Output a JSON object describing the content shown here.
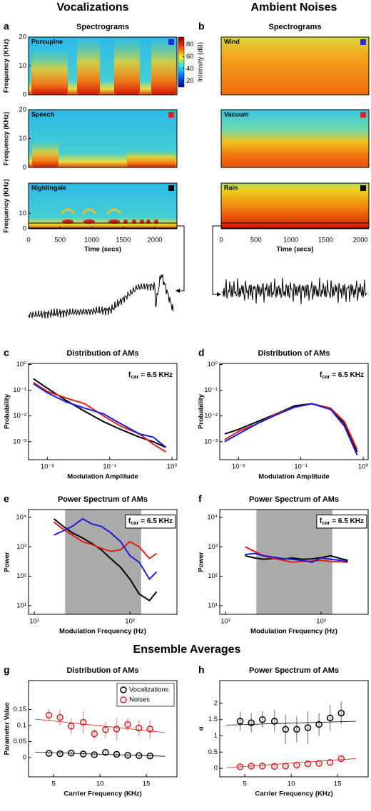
{
  "headings": {
    "left": "Vocalizations",
    "right": "Ambient Noises",
    "ensemble": "Ensemble Averages"
  },
  "chart_data": [
    {
      "type": "spectrogram",
      "panel": "a",
      "title": "Spectrograms",
      "ylabel": "Frequency (KHz)",
      "xlabel": "Time (secs)",
      "xlim": [
        0,
        2350
      ],
      "xticks": [
        0,
        500,
        1000,
        1500,
        2000
      ],
      "colorbar": {
        "label": "Intensity (dB)",
        "lim": [
          10,
          92
        ],
        "ticks": [
          20,
          40,
          60,
          80
        ]
      },
      "panels": [
        {
          "name": "Porcupine",
          "color": "#1f2fe0",
          "ylim": [
            0,
            20
          ],
          "yticks": [
            0,
            10,
            20
          ]
        },
        {
          "name": "Speech",
          "color": "#e8221e",
          "ylim": [
            0,
            20
          ],
          "yticks": [
            0,
            10,
            20
          ]
        },
        {
          "name": "Nightingale",
          "color": "#000000",
          "ylim": [
            0,
            30
          ],
          "yticks": [
            0,
            10
          ]
        }
      ]
    },
    {
      "type": "spectrogram",
      "panel": "b",
      "title": "Spectrograms",
      "xlabel": "Time (secs)",
      "xlim": [
        0,
        2120
      ],
      "xticks": [
        0,
        500,
        1000,
        1500,
        2000
      ],
      "panels": [
        {
          "name": "Wind",
          "color": "#1f2fe0"
        },
        {
          "name": "Vacuum",
          "color": "#e8221e"
        },
        {
          "name": "Rain",
          "color": "#000000"
        }
      ]
    },
    {
      "type": "line",
      "panel": "c",
      "title": "Distribution of AMs",
      "xlabel": "Modulation Amplitude",
      "ylabel": "Probability",
      "xscale": "log",
      "yscale": "log",
      "xlim": [
        0.005,
        1.2
      ],
      "ylim": [
        0.0002,
        1.1
      ],
      "xticks": [
        {
          "value": 0.01,
          "label": "10⁻²"
        },
        {
          "value": 0.1,
          "label": "10⁻¹"
        },
        {
          "value": 1,
          "label": "10⁰"
        }
      ],
      "yticks": [
        {
          "value": 0.001,
          "label": "10⁻³"
        },
        {
          "value": 0.01,
          "label": "10⁻²"
        },
        {
          "value": 0.1,
          "label": "10⁻¹"
        },
        {
          "value": 1,
          "label": "10⁰"
        }
      ],
      "annotation": [
        "f",
        "car",
        " = 6.5 KHz"
      ],
      "annotation_box": false,
      "x": [
        0.006,
        0.01,
        0.02,
        0.04,
        0.08,
        0.15,
        0.3,
        0.5,
        0.8
      ],
      "series": [
        {
          "color": "#000000",
          "values": [
            0.28,
            0.12,
            0.04,
            0.015,
            0.006,
            0.003,
            0.0015,
            0.001,
            0.0006
          ]
        },
        {
          "color": "#e0201b",
          "values": [
            0.2,
            0.09,
            0.05,
            0.03,
            0.01,
            0.004,
            0.002,
            0.0008,
            0.0004
          ]
        },
        {
          "color": "#1c1cdc",
          "values": [
            0.18,
            0.08,
            0.035,
            0.02,
            0.012,
            0.005,
            0.002,
            0.0015,
            0.0006
          ]
        }
      ]
    },
    {
      "type": "line",
      "panel": "d",
      "title": "Distribution of AMs",
      "xlabel": "Modulation Amplitude",
      "ylabel": "Probability",
      "xscale": "log",
      "yscale": "log",
      "xlim": [
        0.005,
        1.2
      ],
      "ylim": [
        0.0002,
        1.1
      ],
      "xticks": [
        {
          "value": 0.01,
          "label": "10⁻²"
        },
        {
          "value": 0.1,
          "label": "10⁻¹"
        },
        {
          "value": 1,
          "label": "10⁰"
        }
      ],
      "yticks": [
        {
          "value": 0.001,
          "label": "10⁻³"
        },
        {
          "value": 0.01,
          "label": "10⁻²"
        },
        {
          "value": 0.1,
          "label": "10⁻¹"
        },
        {
          "value": 1,
          "label": "10⁰"
        }
      ],
      "annotation": [
        "f",
        "car",
        " = 6.5 KHz"
      ],
      "annotation_box": false,
      "x": [
        0.006,
        0.01,
        0.02,
        0.04,
        0.08,
        0.15,
        0.3,
        0.5,
        0.8
      ],
      "series": [
        {
          "color": "#000000",
          "values": [
            0.002,
            0.003,
            0.006,
            0.012,
            0.025,
            0.03,
            0.02,
            0.005,
            0.0004
          ]
        },
        {
          "color": "#e0201b",
          "values": [
            0.0012,
            0.0025,
            0.005,
            0.012,
            0.022,
            0.03,
            0.02,
            0.006,
            0.0005
          ]
        },
        {
          "color": "#1c1cdc",
          "values": [
            0.001,
            0.002,
            0.005,
            0.011,
            0.022,
            0.03,
            0.018,
            0.004,
            0.0003
          ]
        }
      ]
    },
    {
      "type": "line",
      "panel": "e",
      "title": "Power Spectrum of AMs",
      "xlabel": "Modulation Frequency (Hz)",
      "ylabel": "Power",
      "xscale": "log",
      "yscale": "log",
      "xlim": [
        8.7,
        310
      ],
      "ylim": [
        5.1,
        18500
      ],
      "xticks": [
        {
          "value": 10,
          "label": "10¹"
        },
        {
          "value": 100,
          "label": "10²"
        }
      ],
      "yticks": [
        {
          "value": 10,
          "label": "10¹"
        },
        {
          "value": 100,
          "label": "10²"
        },
        {
          "value": 1000,
          "label": "10³"
        },
        {
          "value": 10000,
          "label": "10⁴"
        }
      ],
      "shade_x": [
        21,
        131
      ],
      "annotation": [
        "f",
        "car",
        " = 6.5 KHz"
      ],
      "annotation_box": true,
      "x": [
        16,
        20,
        25,
        32,
        40,
        50,
        63,
        80,
        100,
        125,
        160,
        190
      ],
      "series": [
        {
          "color": "#000000",
          "values": [
            9000,
            5000,
            3000,
            2000,
            1300,
            800,
            400,
            200,
            80,
            25,
            15,
            30
          ]
        },
        {
          "color": "#e0201b",
          "values": [
            7000,
            4000,
            2500,
            1500,
            1200,
            900,
            700,
            800,
            1500,
            1000,
            400,
            600
          ]
        },
        {
          "color": "#1c1cdc",
          "values": [
            2500,
            3500,
            5000,
            9000,
            6000,
            5000,
            3000,
            1500,
            500,
            300,
            80,
            140
          ]
        }
      ]
    },
    {
      "type": "line",
      "panel": "f",
      "title": "Power Spectrum of AMs",
      "xlabel": "Modulation Frequency (Hz)",
      "ylabel": "Power",
      "xscale": "log",
      "yscale": "log",
      "xlim": [
        8.7,
        310
      ],
      "ylim": [
        5.1,
        18500
      ],
      "xticks": [
        {
          "value": 10,
          "label": "10¹"
        },
        {
          "value": 100,
          "label": "10²"
        }
      ],
      "yticks": [
        {
          "value": 10,
          "label": "10¹"
        },
        {
          "value": 100,
          "label": "10²"
        },
        {
          "value": 1000,
          "label": "10³"
        },
        {
          "value": 10000,
          "label": "10⁴"
        }
      ],
      "shade_x": [
        21,
        131
      ],
      "annotation": [
        "f",
        "car",
        " = 6.5 KHz"
      ],
      "annotation_box": true,
      "x": [
        16,
        20,
        25,
        32,
        40,
        50,
        63,
        80,
        100,
        125,
        160,
        190
      ],
      "series": [
        {
          "color": "#000000",
          "values": [
            500,
            420,
            380,
            400,
            380,
            420,
            380,
            390,
            430,
            500,
            400,
            350
          ]
        },
        {
          "color": "#e0201b",
          "values": [
            1000,
            700,
            500,
            400,
            350,
            300,
            320,
            330,
            350,
            320,
            310,
            300
          ]
        },
        {
          "color": "#1c1cdc",
          "values": [
            550,
            600,
            500,
            450,
            400,
            380,
            350,
            300,
            420,
            380,
            350,
            320
          ]
        }
      ]
    },
    {
      "type": "errorbar",
      "panel": "g",
      "title": "Distribution of AMs",
      "xlabel": "Carrier Frequency (KHz)",
      "ylabel": "Parameter Value",
      "xlim": [
        2.3,
        18.3
      ],
      "ylim": [
        -0.06,
        0.24
      ],
      "xticks": [
        5,
        10,
        15
      ],
      "yticks": [
        0,
        0.05,
        0.1,
        0.15
      ],
      "legend": "upper right",
      "x": [
        4.5,
        5.7,
        6.9,
        8.2,
        9.4,
        10.6,
        11.8,
        13.0,
        14.2,
        15.4
      ],
      "series": [
        {
          "name": "Vocalizations",
          "color": "#000000",
          "values": [
            0.013,
            0.012,
            0.014,
            0.011,
            0.009,
            0.016,
            0.01,
            0.007,
            0.006,
            0.005
          ],
          "errors": [
            0.005,
            0.005,
            0.005,
            0.005,
            0.005,
            0.006,
            0.005,
            0.005,
            0.005,
            0.005
          ],
          "fit": {
            "x": [
              3,
              17
            ],
            "values": [
              0.017,
              0.004
            ]
          }
        },
        {
          "name": "Noises",
          "color": "#d42020",
          "values": [
            0.132,
            0.125,
            0.098,
            0.11,
            0.074,
            0.087,
            0.089,
            0.103,
            0.092,
            0.089
          ],
          "errors": [
            0.02,
            0.025,
            0.025,
            0.035,
            0.015,
            0.025,
            0.035,
            0.02,
            0.025,
            0.03
          ],
          "fit": {
            "x": [
              3,
              17
            ],
            "values": [
              0.12,
              0.078
            ]
          }
        }
      ]
    },
    {
      "type": "errorbar",
      "panel": "h",
      "title": "Power Spectrum of AMs",
      "xlabel": "Carrier Frequency (KHz)",
      "ylabel": "α",
      "xlim": [
        2.3,
        18.3
      ],
      "ylim": [
        -0.26,
        2.7
      ],
      "xticks": [
        5,
        10,
        15
      ],
      "yticks": [
        0,
        0.5,
        1,
        1.5,
        2
      ],
      "x": [
        4.5,
        5.7,
        6.9,
        8.2,
        9.4,
        10.6,
        11.8,
        13.0,
        14.2,
        15.4
      ],
      "series": [
        {
          "color": "#000000",
          "values": [
            1.45,
            1.4,
            1.5,
            1.45,
            1.2,
            1.2,
            1.25,
            1.35,
            1.55,
            1.7
          ],
          "errors": [
            0.3,
            0.3,
            0.25,
            0.35,
            0.45,
            0.4,
            0.5,
            0.35,
            0.4,
            0.35
          ],
          "fit": {
            "x": [
              3,
              17
            ],
            "values": [
              1.33,
              1.45
            ]
          }
        },
        {
          "color": "#d42020",
          "values": [
            0.05,
            0.07,
            0.07,
            0.06,
            0.07,
            0.1,
            0.14,
            0.15,
            0.18,
            0.3
          ],
          "errors": [
            0.05,
            0.05,
            0.05,
            0.05,
            0.05,
            0.05,
            0.05,
            0.05,
            0.06,
            0.08
          ],
          "fit": {
            "x": [
              3,
              17
            ],
            "values": [
              0.02,
              0.3
            ]
          }
        }
      ]
    }
  ]
}
